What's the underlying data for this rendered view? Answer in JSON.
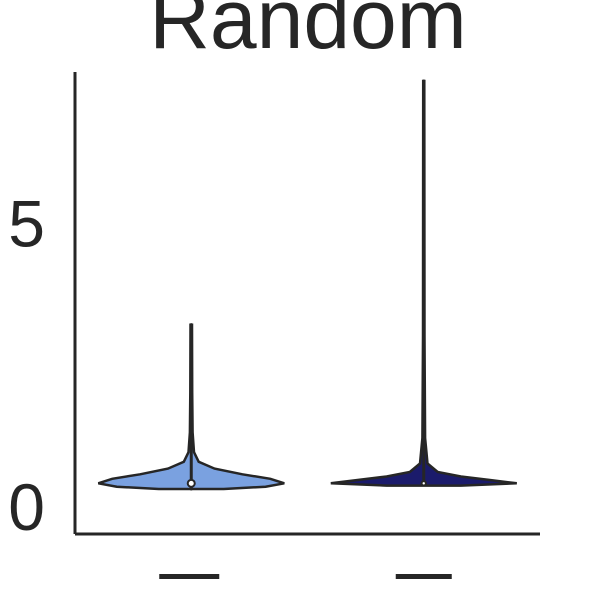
{
  "chart_data": {
    "type": "violin",
    "title": "Random",
    "xlabel": "",
    "ylabel": "",
    "ylim": [
      0,
      7.8
    ],
    "yticks": [
      0,
      5
    ],
    "ytick_labels": [
      "0",
      "5"
    ],
    "grid": false,
    "categories": [
      "",
      ""
    ],
    "series": [
      {
        "median": 0.4,
        "min": 0.3,
        "max": 3.2,
        "q1": 0.35,
        "q3": 0.5,
        "color": "#7aa1e0",
        "density_profile": [
          [
            0.3,
            0.35
          ],
          [
            0.34,
            0.8
          ],
          [
            0.4,
            1.0
          ],
          [
            0.48,
            0.85
          ],
          [
            0.56,
            0.55
          ],
          [
            0.66,
            0.25
          ],
          [
            0.78,
            0.08
          ],
          [
            0.95,
            0.03
          ],
          [
            1.3,
            0.015
          ],
          [
            2.0,
            0.01
          ],
          [
            3.2,
            0.008
          ]
        ]
      },
      {
        "median": 0.4,
        "min": 0.38,
        "max": 7.5,
        "q1": 0.38,
        "q3": 0.45,
        "color": "#1b1b6b",
        "density_profile": [
          [
            0.36,
            0.4
          ],
          [
            0.4,
            1.0
          ],
          [
            0.46,
            0.7
          ],
          [
            0.52,
            0.4
          ],
          [
            0.6,
            0.15
          ],
          [
            0.75,
            0.04
          ],
          [
            1.2,
            0.015
          ],
          [
            3.0,
            0.008
          ],
          [
            7.5,
            0.006
          ]
        ]
      }
    ]
  }
}
